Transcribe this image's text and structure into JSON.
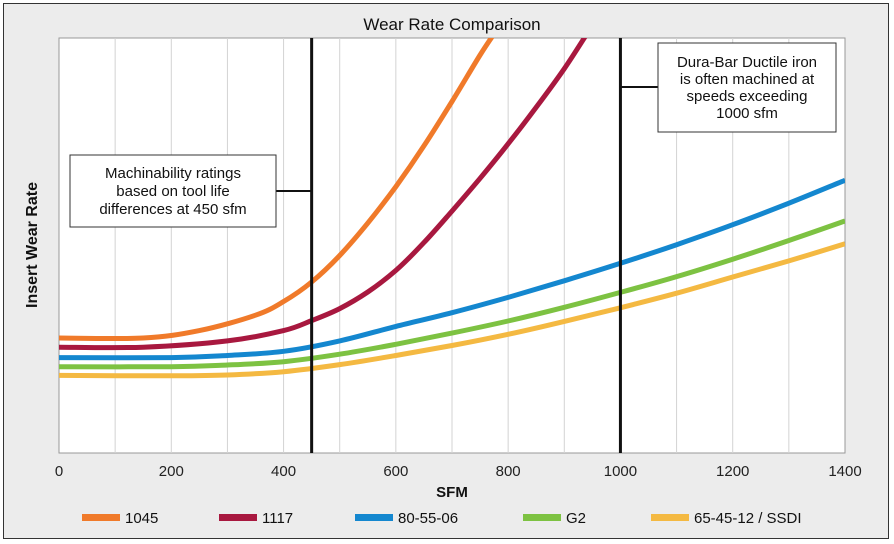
{
  "chart_data": {
    "type": "line",
    "title": "Wear Rate Comparison",
    "xlabel": "SFM",
    "ylabel": "Insert Wear Rate",
    "xlim": [
      0,
      1400
    ],
    "x_ticks": [
      0,
      200,
      400,
      600,
      800,
      1000,
      1200,
      1400
    ],
    "ylim": [
      0,
      100
    ],
    "grid": "vertical",
    "legend_position": "bottom",
    "series": [
      {
        "name": "1045",
        "color": "#f07a2a",
        "x": [
          0,
          150,
          250,
          350,
          400,
          450,
          500,
          550,
          600,
          650,
          700,
          750,
          780
        ],
        "y": [
          27.7,
          27.7,
          29.5,
          33.2,
          36.5,
          41.2,
          47.6,
          55.4,
          64.2,
          74.0,
          84.7,
          95.9,
          102
        ]
      },
      {
        "name": "1117",
        "color": "#a8183f",
        "x": [
          0,
          150,
          300,
          400,
          450,
          500,
          550,
          600,
          650,
          700,
          750,
          800,
          850,
          900,
          945
        ],
        "y": [
          25.5,
          25.5,
          27.0,
          29.5,
          31.9,
          34.8,
          38.8,
          44.0,
          50.7,
          58.3,
          66.2,
          74.5,
          83.3,
          92.6,
          102
        ]
      },
      {
        "name": "80-55-06",
        "color": "#1487cf",
        "x": [
          0,
          200,
          300,
          400,
          500,
          600,
          700,
          800,
          900,
          1000,
          1100,
          1200,
          1300,
          1400
        ],
        "y": [
          23.0,
          23.0,
          23.5,
          24.5,
          27.0,
          30.5,
          33.8,
          37.5,
          41.5,
          45.7,
          50.2,
          55.0,
          60.2,
          65.7
        ]
      },
      {
        "name": "G2",
        "color": "#7dc242",
        "x": [
          0,
          200,
          300,
          400,
          500,
          600,
          700,
          800,
          900,
          1000,
          1100,
          1200,
          1300,
          1400
        ],
        "y": [
          20.8,
          20.8,
          21.2,
          22.0,
          23.8,
          26.2,
          28.9,
          31.8,
          35.1,
          38.7,
          42.5,
          46.7,
          51.2,
          55.9
        ]
      },
      {
        "name": "65-45-12 / SSDI",
        "color": "#f4b942",
        "x": [
          0,
          200,
          300,
          400,
          500,
          600,
          700,
          800,
          900,
          1000,
          1100,
          1200,
          1300,
          1400
        ],
        "y": [
          18.7,
          18.6,
          18.8,
          19.6,
          21.3,
          23.5,
          25.9,
          28.6,
          31.7,
          35.0,
          38.5,
          42.4,
          46.3,
          50.4
        ]
      }
    ],
    "reference_lines": [
      {
        "x": 450,
        "text": "Machinability ratings based on tool life differences at 450 sfm",
        "lines": [
          "Machinability ratings",
          "based on tool life",
          "differences at 450 sfm"
        ]
      },
      {
        "x": 1000,
        "text": "Dura-Bar Ductile iron is often machined at speeds exceeding 1000 sfm",
        "lines": [
          "Dura-Bar Ductile iron",
          "is often machined at",
          "speeds exceeding",
          "1000 sfm"
        ]
      }
    ]
  }
}
